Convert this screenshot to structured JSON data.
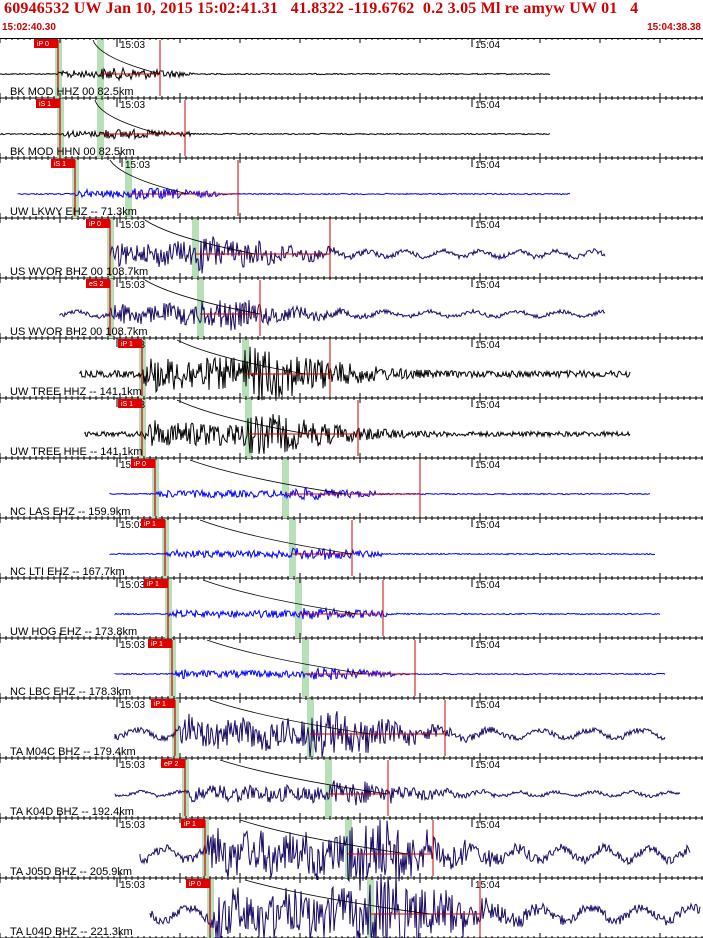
{
  "header": {
    "title": "60946532 UW Jan 10, 2015 15:02:41.31   41.8322 -119.6762  0.2 3.05 Ml re amyw UW 01   4",
    "time_start": "15:02:40.30",
    "time_end": "15:04:38.38"
  },
  "time_marks": [
    "15:03",
    "15:04"
  ],
  "colors": {
    "black": "#000000",
    "blue": "#0000ff",
    "navy": "#1a0a66",
    "pick": "#d00000",
    "pick_box": "#e00000",
    "window": "#b8e0b8"
  },
  "traces": [
    {
      "label": "BK MOD HHZ 00 82.5km",
      "color": "black",
      "pick": "iP 0",
      "amp": 0.12
    },
    {
      "label": "BK MOD HHN 00 82.5km",
      "color": "black",
      "pick": "iS 1",
      "amp": 0.1
    },
    {
      "label": "UW LKWY EHZ -- 71.3km",
      "color": "blue",
      "pick": "iS 1",
      "amp": 0.12
    },
    {
      "label": "US WVOR BHZ 00 108.7km",
      "color": "navy",
      "pick": "iP 0",
      "amp": 0.35
    },
    {
      "label": "US WVOR BH2 00 108.7km",
      "color": "navy",
      "pick": "eS 2",
      "amp": 0.3
    },
    {
      "label": "UW TREE HHZ -- 141.1km",
      "color": "black",
      "pick": "iP 1",
      "amp": 0.55
    },
    {
      "label": "UW TREE HHE -- 141.1km",
      "color": "black",
      "pick": "iS 1",
      "amp": 0.4
    },
    {
      "label": "NC LAS EHZ -- 159.9km",
      "color": "blue",
      "pick": "iP 0",
      "amp": 0.12
    },
    {
      "label": "NC LTI EHZ -- 167.7km",
      "color": "blue",
      "pick": "iP 1",
      "amp": 0.12
    },
    {
      "label": "UW HOG EHZ -- 173.8km",
      "color": "blue",
      "pick": "iP 1",
      "amp": 0.12
    },
    {
      "label": "NC LBC EHZ -- 178.3km",
      "color": "blue",
      "pick": "iP 1",
      "amp": 0.12
    },
    {
      "label": "TA M04C BHZ -- 179.4km",
      "color": "navy",
      "pick": "iP 1",
      "amp": 0.45
    },
    {
      "label": "TA K04D BHZ -- 192.4km",
      "color": "navy",
      "pick": "eP 2",
      "amp": 0.25
    },
    {
      "label": "TA J05D BHZ -- 205.9km",
      "color": "navy",
      "pick": "iP 1",
      "amp": 0.7
    },
    {
      "label": "TA L04D BHZ -- 221.3km",
      "color": "navy",
      "pick": "iP 0",
      "amp": 0.75
    }
  ]
}
